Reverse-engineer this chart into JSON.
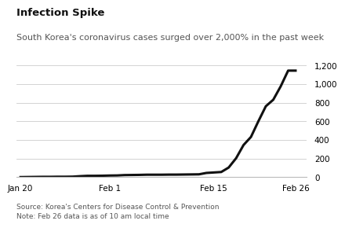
{
  "title": "Infection Spike",
  "subtitle": "South Korea's coronavirus cases surged over 2,000% in the past week",
  "source_note": "Source: Korea's Centers for Disease Control & Prevention\nNote: Feb 26 data is as of 10 am local time",
  "x_tick_labels": [
    "Jan 20",
    "Feb 1",
    "Feb 15",
    "Feb 26"
  ],
  "x_tick_days": [
    0,
    12,
    26,
    37
  ],
  "ylim": [
    0,
    1200
  ],
  "yticks": [
    0,
    200,
    400,
    600,
    800,
    1000,
    1200
  ],
  "line_color": "#111111",
  "line_width": 2.2,
  "background_color": "#ffffff",
  "data_days": [
    0,
    1,
    2,
    3,
    4,
    5,
    6,
    7,
    8,
    9,
    10,
    11,
    12,
    13,
    14,
    15,
    16,
    17,
    18,
    19,
    20,
    21,
    22,
    23,
    24,
    25,
    26,
    27,
    28,
    29,
    30,
    31,
    32,
    33,
    34,
    35,
    36,
    37
  ],
  "data_values": [
    1,
    2,
    3,
    4,
    4,
    5,
    5,
    6,
    11,
    15,
    15,
    16,
    18,
    19,
    23,
    24,
    25,
    27,
    27,
    27,
    28,
    28,
    29,
    30,
    31,
    46,
    51,
    56,
    104,
    204,
    346,
    433,
    602,
    763,
    833,
    977,
    1146,
    1146
  ],
  "title_fontsize": 9.5,
  "subtitle_fontsize": 8.0,
  "source_fontsize": 6.5,
  "tick_fontsize": 7.5,
  "grid_color": "#cccccc",
  "spine_color": "#bbbbbb"
}
